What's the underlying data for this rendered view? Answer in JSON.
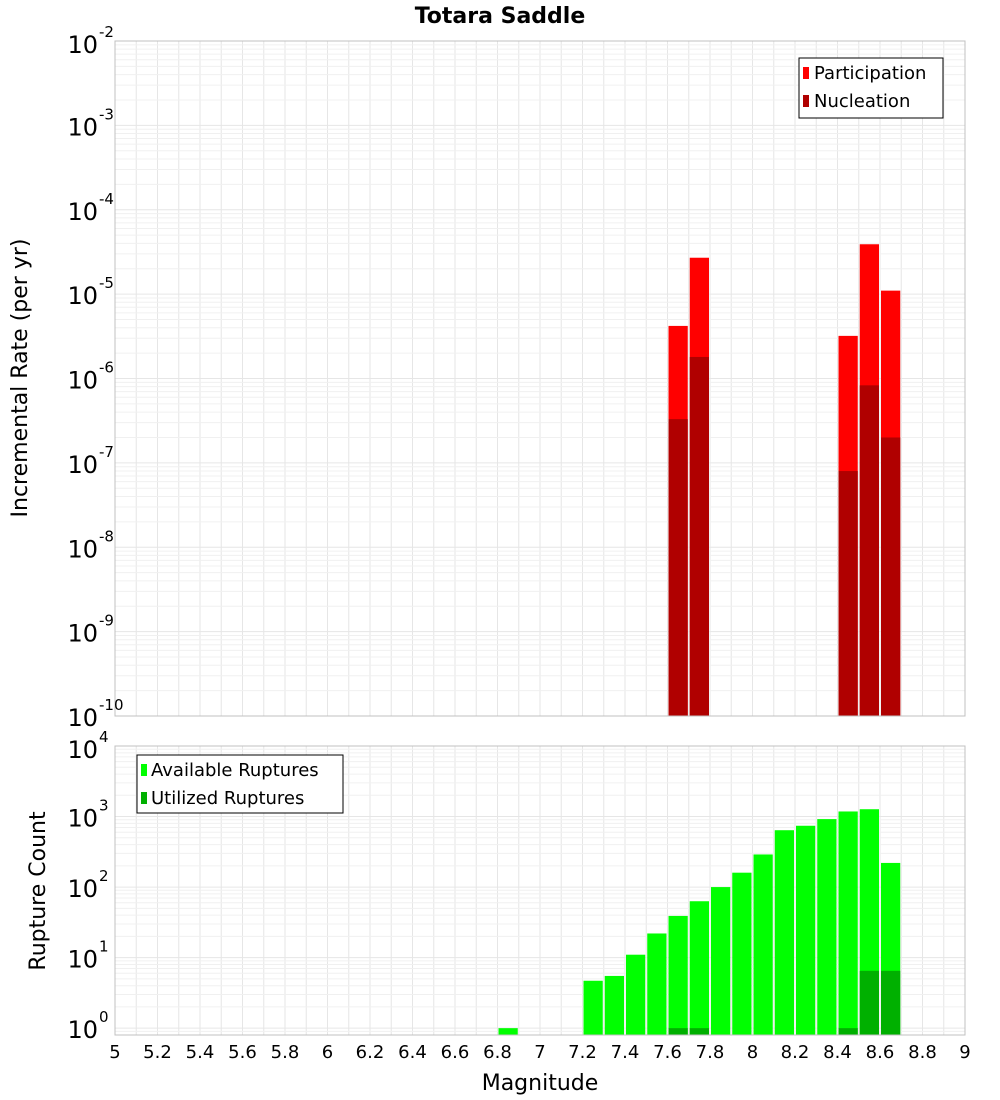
{
  "chart_data": [
    {
      "type": "bar",
      "title": "Totara Saddle",
      "xlabel": "",
      "ylabel": "Incremental Rate (per yr)",
      "yscale": "log",
      "ylim": [
        1e-10,
        0.01
      ],
      "xlim": [
        5,
        9
      ],
      "y_ticks": [
        {
          "base": "10",
          "exp": "-2"
        },
        {
          "base": "10",
          "exp": "-3"
        },
        {
          "base": "10",
          "exp": "-4"
        },
        {
          "base": "10",
          "exp": "-5"
        },
        {
          "base": "10",
          "exp": "-6"
        },
        {
          "base": "10",
          "exp": "-7"
        },
        {
          "base": "10",
          "exp": "-8"
        },
        {
          "base": "10",
          "exp": "-9"
        },
        {
          "base": "10",
          "exp": "-10"
        }
      ],
      "legend": {
        "position": "top-right",
        "entries": [
          "Participation",
          "Nucleation"
        ]
      },
      "grid": true,
      "series": [
        {
          "name": "Participation",
          "color": "#ff0000",
          "points": [
            {
              "x": 7.65,
              "y": 4.2e-06
            },
            {
              "x": 7.75,
              "y": 2.7e-05
            },
            {
              "x": 8.45,
              "y": 3.2e-06
            },
            {
              "x": 8.55,
              "y": 3.9e-05
            },
            {
              "x": 8.65,
              "y": 1.1e-05
            }
          ]
        },
        {
          "name": "Nucleation",
          "color": "#b00000",
          "points": [
            {
              "x": 7.65,
              "y": 3.3e-07
            },
            {
              "x": 7.75,
              "y": 1.8e-06
            },
            {
              "x": 8.45,
              "y": 8e-08
            },
            {
              "x": 8.55,
              "y": 8.3e-07
            },
            {
              "x": 8.65,
              "y": 2e-07
            }
          ]
        }
      ]
    },
    {
      "type": "bar",
      "title": "",
      "xlabel": "Magnitude",
      "ylabel": "Rupture Count",
      "yscale": "log",
      "ylim": [
        0.8,
        10000
      ],
      "xlim": [
        5,
        9
      ],
      "y_ticks": [
        {
          "base": "10",
          "exp": "4"
        },
        {
          "base": "10",
          "exp": "3"
        },
        {
          "base": "10",
          "exp": "2"
        },
        {
          "base": "10",
          "exp": "1"
        },
        {
          "base": "10",
          "exp": "0"
        }
      ],
      "x_tick_labels": [
        "5",
        "5.2",
        "5.4",
        "5.6",
        "5.8",
        "6",
        "6.2",
        "6.4",
        "6.6",
        "6.8",
        "7",
        "7.2",
        "7.4",
        "7.6",
        "7.8",
        "8",
        "8.2",
        "8.4",
        "8.6",
        "8.8",
        "9"
      ],
      "legend": {
        "position": "top-left",
        "entries": [
          "Available Ruptures",
          "Utilized Ruptures"
        ]
      },
      "grid": true,
      "series": [
        {
          "name": "Available Ruptures",
          "color": "#00ff00",
          "points": [
            {
              "x": 6.85,
              "y": 1
            },
            {
              "x": 7.25,
              "y": 4.7
            },
            {
              "x": 7.35,
              "y": 5.5
            },
            {
              "x": 7.45,
              "y": 11
            },
            {
              "x": 7.55,
              "y": 22
            },
            {
              "x": 7.65,
              "y": 39
            },
            {
              "x": 7.75,
              "y": 63
            },
            {
              "x": 7.85,
              "y": 100
            },
            {
              "x": 7.95,
              "y": 160
            },
            {
              "x": 8.05,
              "y": 290
            },
            {
              "x": 8.15,
              "y": 640
            },
            {
              "x": 8.25,
              "y": 740
            },
            {
              "x": 8.35,
              "y": 920
            },
            {
              "x": 8.45,
              "y": 1180
            },
            {
              "x": 8.55,
              "y": 1270
            },
            {
              "x": 8.65,
              "y": 220
            }
          ]
        },
        {
          "name": "Utilized Ruptures",
          "color": "#00b000",
          "points": [
            {
              "x": 7.65,
              "y": 1
            },
            {
              "x": 7.75,
              "y": 1
            },
            {
              "x": 8.45,
              "y": 1
            },
            {
              "x": 8.55,
              "y": 6.5
            },
            {
              "x": 8.65,
              "y": 6.5
            }
          ]
        }
      ]
    }
  ]
}
